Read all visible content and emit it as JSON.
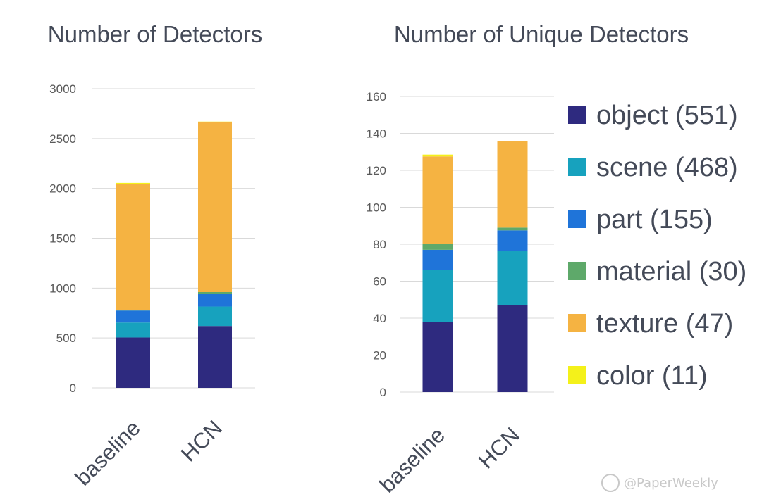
{
  "watermark": "@PaperWeekly",
  "series_colors": {
    "object": "#2e2a7f",
    "scene": "#17a2be",
    "part": "#1f74d9",
    "material": "#5ea96a",
    "texture": "#f5b342",
    "color": "#f4f11a"
  },
  "legend": [
    {
      "key": "object",
      "label": "object (551)"
    },
    {
      "key": "scene",
      "label": "scene (468)"
    },
    {
      "key": "part",
      "label": "part (155)"
    },
    {
      "key": "material",
      "label": "material (30)"
    },
    {
      "key": "texture",
      "label": "texture (47)"
    },
    {
      "key": "color",
      "label": "color (11)"
    }
  ],
  "chart_data": [
    {
      "type": "bar",
      "stacked": true,
      "title": "Number of Detectors",
      "categories": [
        "baseline",
        "HCN"
      ],
      "ylim": [
        0,
        3000
      ],
      "yticks": [
        "0",
        "500",
        "1000",
        "1500",
        "2000",
        "2500",
        "3000"
      ],
      "grid": true,
      "series": [
        {
          "name": "object (551)",
          "key": "object",
          "values": [
            505,
            620
          ]
        },
        {
          "name": "scene (468)",
          "key": "scene",
          "values": [
            150,
            195
          ]
        },
        {
          "name": "part (155)",
          "key": "part",
          "values": [
            120,
            130
          ]
        },
        {
          "name": "material (30)",
          "key": "material",
          "values": [
            5,
            15
          ]
        },
        {
          "name": "texture (47)",
          "key": "texture",
          "values": [
            1265,
            1705
          ]
        },
        {
          "name": "color (11)",
          "key": "color",
          "values": [
            10,
            5
          ]
        }
      ]
    },
    {
      "type": "bar",
      "stacked": true,
      "title": "Number of Unique Detectors",
      "categories": [
        "baseline",
        "HCN"
      ],
      "ylim": [
        0,
        160
      ],
      "yticks": [
        "0",
        "20",
        "40",
        "60",
        "80",
        "100",
        "120",
        "140",
        "160"
      ],
      "grid": true,
      "legend_position": "right",
      "series": [
        {
          "name": "object (551)",
          "key": "object",
          "values": [
            38,
            47
          ]
        },
        {
          "name": "scene (468)",
          "key": "scene",
          "values": [
            28,
            29.5
          ]
        },
        {
          "name": "part (155)",
          "key": "part",
          "values": [
            11,
            11
          ]
        },
        {
          "name": "material (30)",
          "key": "material",
          "values": [
            3,
            1.5
          ]
        },
        {
          "name": "texture (47)",
          "key": "texture",
          "values": [
            47.5,
            47
          ]
        },
        {
          "name": "color (11)",
          "key": "color",
          "values": [
            1,
            0
          ]
        }
      ]
    }
  ]
}
